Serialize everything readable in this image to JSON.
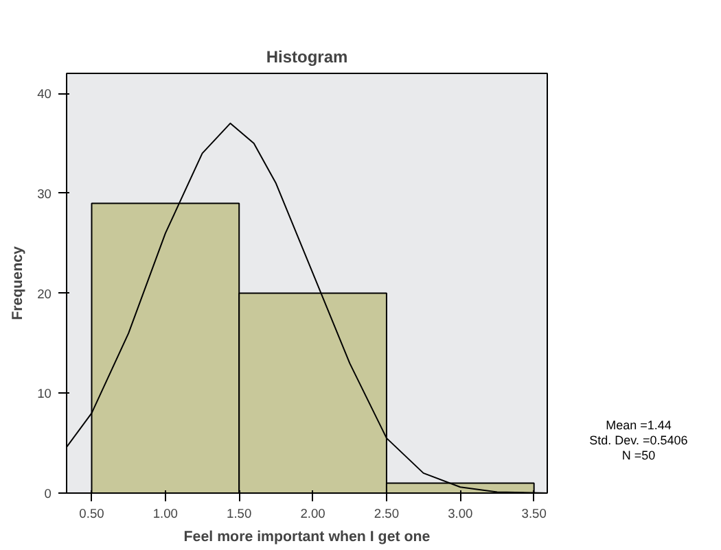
{
  "chart_data": {
    "type": "histogram",
    "title": "Histogram",
    "xlabel": "Feel more important when I get one",
    "ylabel": "Frequency",
    "bins": [
      0.5,
      1.5,
      2.5,
      3.5
    ],
    "values": [
      29,
      20,
      1
    ],
    "color": "#c8c89a",
    "series": [
      {
        "type": "line",
        "color": "#000000",
        "x": [
          0.33,
          0.5,
          0.75,
          1.0,
          1.25,
          1.44,
          1.6,
          1.75,
          2.0,
          2.25,
          2.5,
          2.75,
          3.0,
          3.25,
          3.59
        ],
        "values": [
          4.6,
          8,
          16,
          26,
          34,
          37,
          35,
          31,
          22,
          13,
          5.5,
          2,
          0.6,
          0.1,
          0
        ]
      }
    ],
    "xlim": [
      0.33,
      3.59
    ],
    "ylim": [
      0,
      42
    ],
    "xticks": [
      {
        "value": 0.5,
        "label": "0.50"
      },
      {
        "value": 1.0,
        "label": "1.00"
      },
      {
        "value": 1.5,
        "label": "1.50"
      },
      {
        "value": 2.0,
        "label": "2.00"
      },
      {
        "value": 2.5,
        "label": "2.50"
      },
      {
        "value": 3.0,
        "label": "3.00"
      },
      {
        "value": 3.5,
        "label": "3.50"
      }
    ],
    "yticks": [
      0,
      10,
      20,
      30,
      40
    ],
    "grid": false,
    "annotations": [
      "Mean =1.44",
      "Std. Dev. =0.5406",
      "N =50"
    ]
  }
}
